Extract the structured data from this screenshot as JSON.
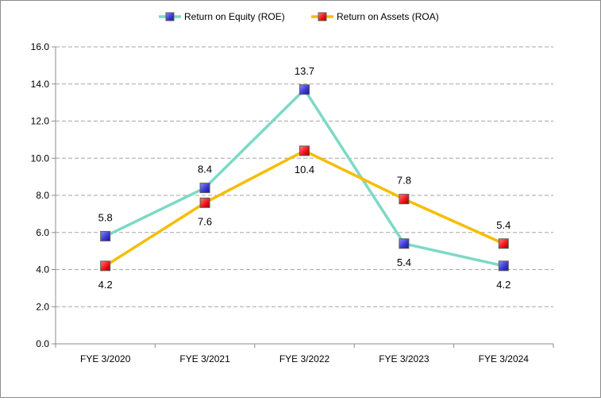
{
  "chart_data": {
    "type": "line",
    "title": "",
    "xlabel": "",
    "ylabel": "",
    "categories": [
      "FYE 3/2020",
      "FYE 3/2021",
      "FYE 3/2022",
      "FYE 3/2023",
      "FYE 3/2024"
    ],
    "ylim": [
      0,
      16
    ],
    "y_ticks": [
      "0.0",
      "2.0",
      "4.0",
      "6.0",
      "8.0",
      "10.0",
      "12.0",
      "14.0",
      "16.0"
    ],
    "grid": "horizontal dashed",
    "legend_position": "top",
    "series": [
      {
        "name": "Return on Equity (ROE)",
        "values": [
          5.8,
          8.4,
          13.7,
          5.4,
          4.2
        ],
        "labels": [
          "5.8",
          "8.4",
          "13.7",
          "5.4",
          "4.2"
        ],
        "line_color": "#7dd9c6",
        "marker_color": "#3b3bd6"
      },
      {
        "name": "Return on Assets (ROA)",
        "values": [
          4.2,
          7.6,
          10.4,
          7.8,
          5.4
        ],
        "labels": [
          "4.2",
          "7.6",
          "10.4",
          "7.8",
          "5.4"
        ],
        "line_color": "#f5bd00",
        "marker_color": "#f01818"
      }
    ]
  }
}
